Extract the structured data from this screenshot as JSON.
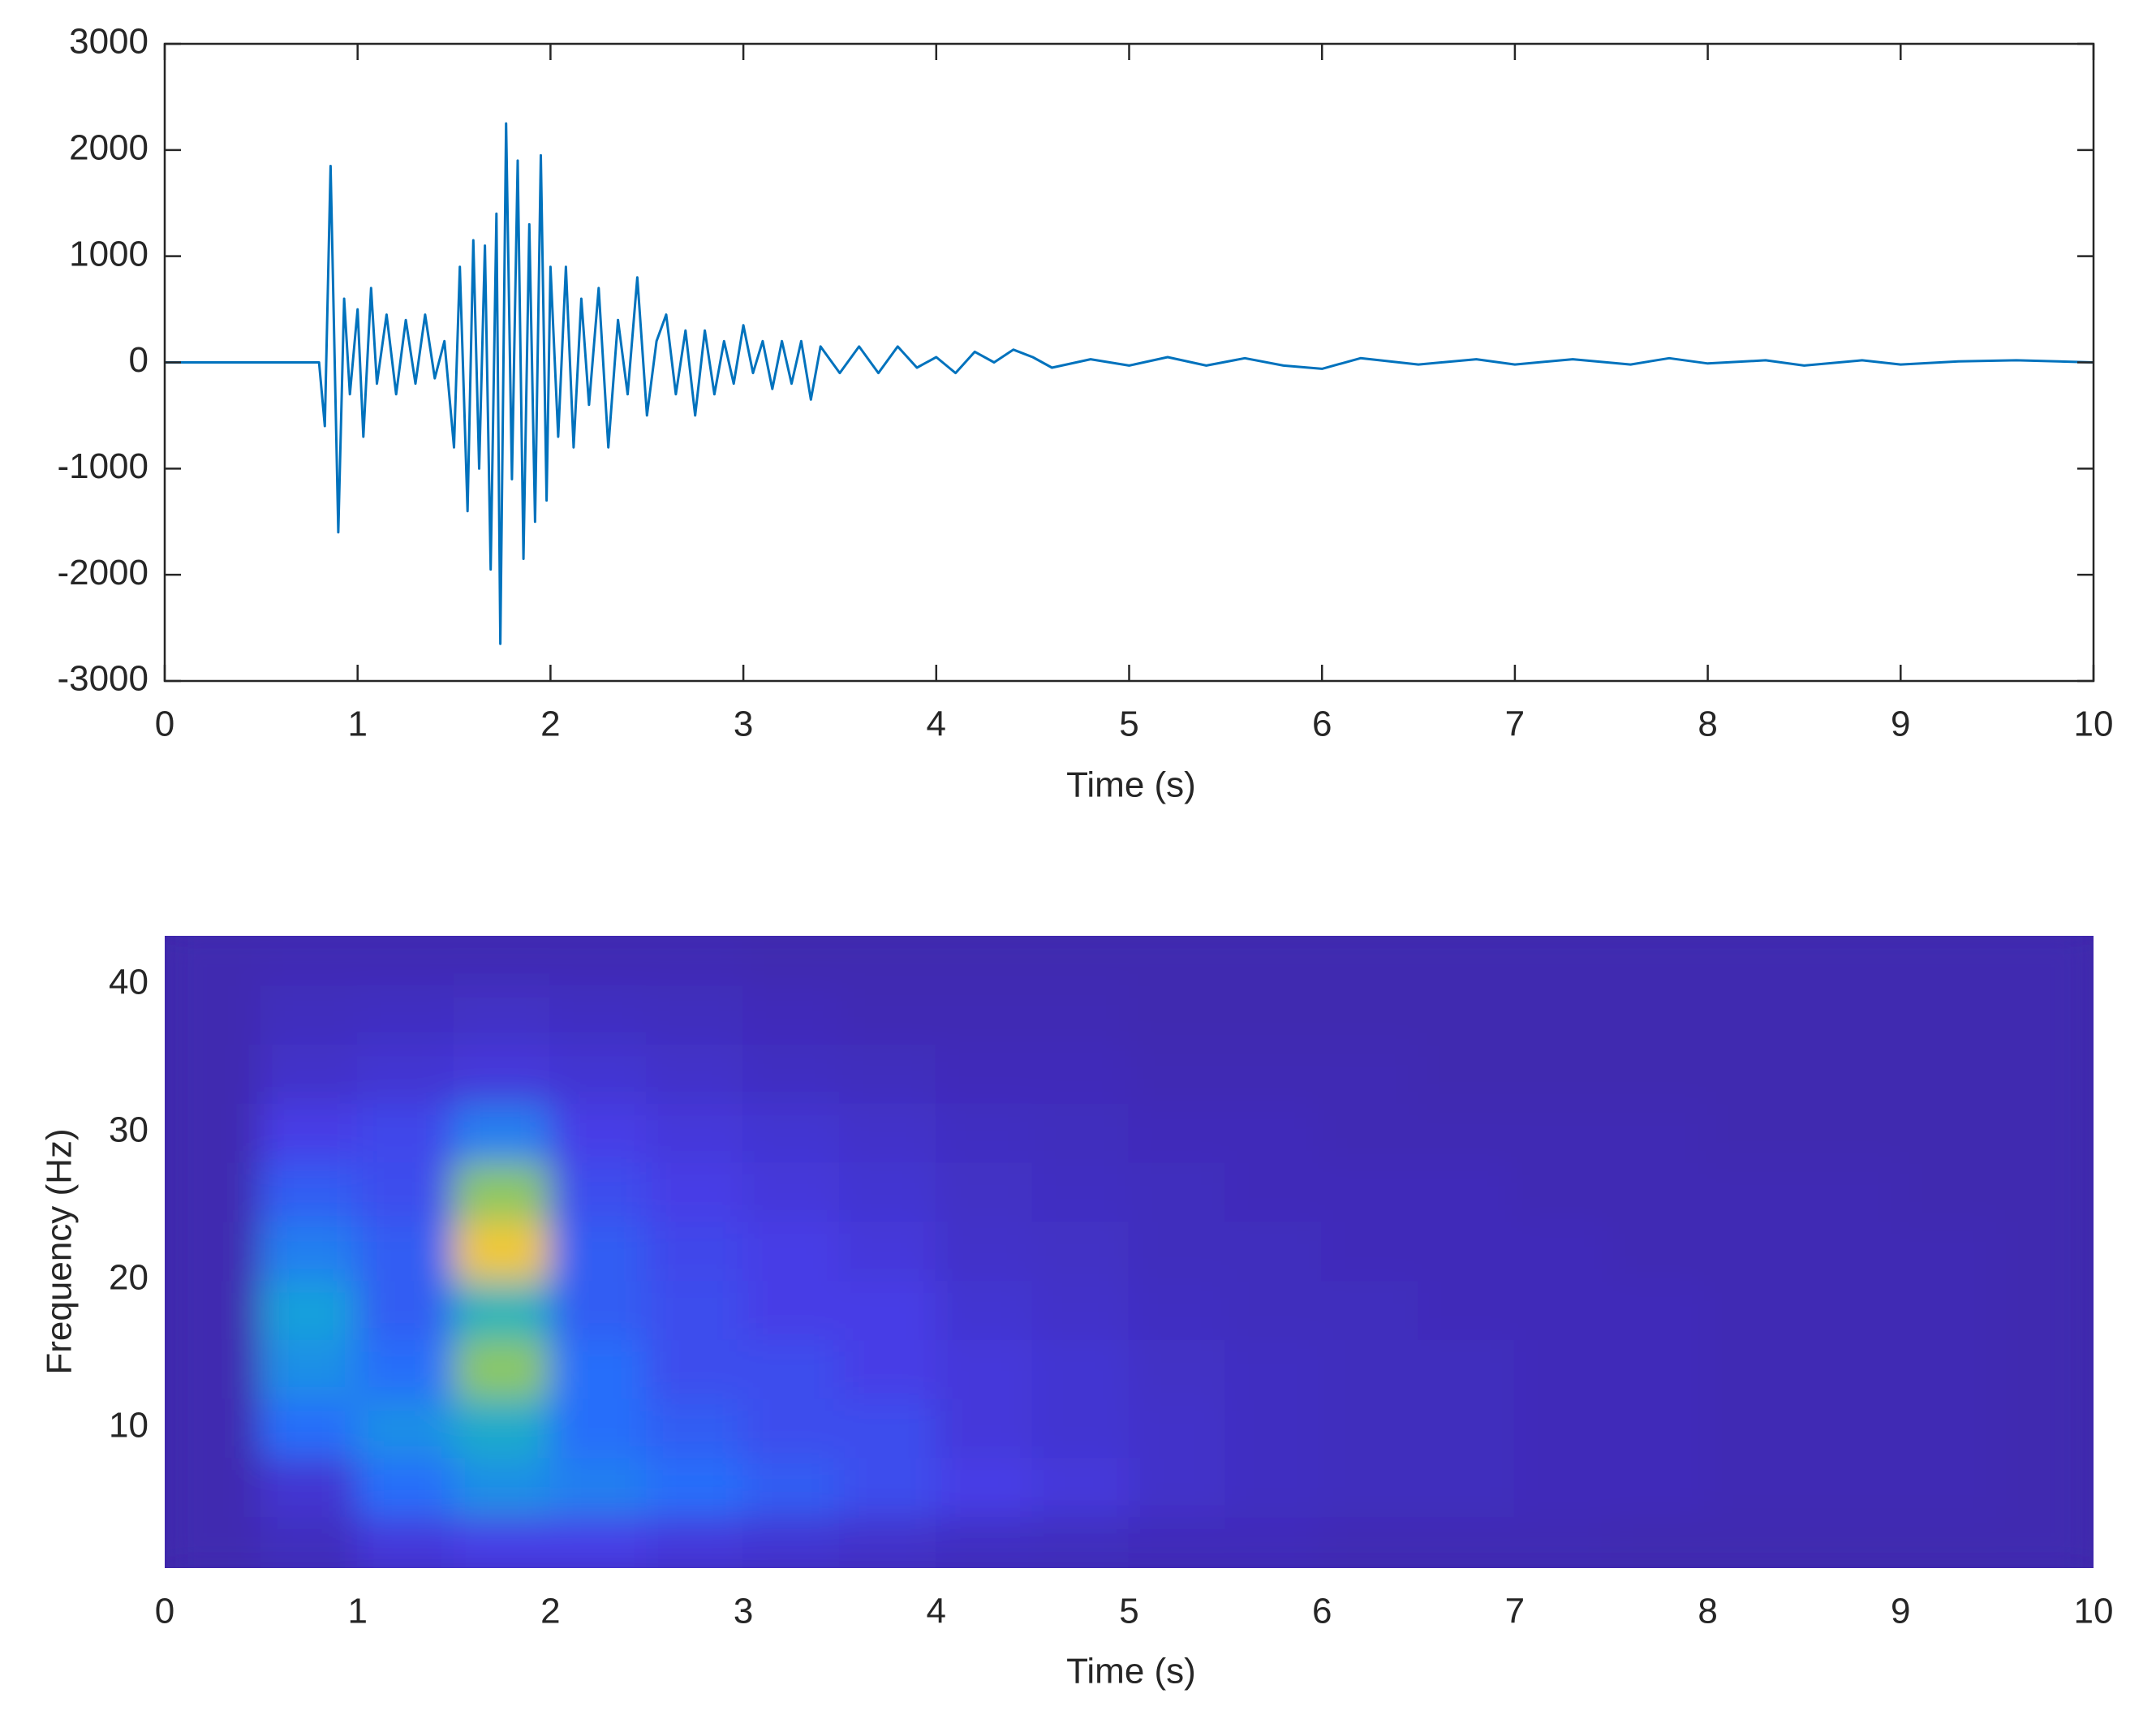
{
  "chart_data": [
    {
      "type": "line",
      "color": "#0072bd",
      "x": [
        0,
        0.8,
        0.83,
        0.86,
        0.9,
        0.93,
        0.96,
        1.0,
        1.03,
        1.07,
        1.1,
        1.15,
        1.2,
        1.25,
        1.3,
        1.35,
        1.4,
        1.45,
        1.5,
        1.53,
        1.57,
        1.6,
        1.63,
        1.66,
        1.69,
        1.72,
        1.74,
        1.77,
        1.8,
        1.83,
        1.86,
        1.89,
        1.92,
        1.95,
        1.98,
        2.0,
        2.04,
        2.08,
        2.12,
        2.16,
        2.2,
        2.25,
        2.3,
        2.35,
        2.4,
        2.45,
        2.5,
        2.55,
        2.6,
        2.65,
        2.7,
        2.75,
        2.8,
        2.85,
        2.9,
        2.95,
        3.0,
        3.05,
        3.1,
        3.15,
        3.2,
        3.25,
        3.3,
        3.35,
        3.4,
        3.5,
        3.6,
        3.7,
        3.8,
        3.9,
        4.0,
        4.1,
        4.2,
        4.3,
        4.4,
        4.5,
        4.6,
        4.8,
        5.0,
        5.2,
        5.4,
        5.6,
        5.8,
        6.0,
        6.2,
        6.5,
        6.8,
        7.0,
        7.3,
        7.6,
        7.8,
        8.0,
        8.3,
        8.5,
        8.8,
        9.0,
        9.3,
        9.6,
        10
      ],
      "values": [
        0,
        0,
        -600,
        1850,
        -1600,
        600,
        -300,
        500,
        -700,
        700,
        -200,
        450,
        -300,
        400,
        -200,
        450,
        -150,
        200,
        -800,
        900,
        -1400,
        1150,
        -1000,
        1100,
        -1950,
        1400,
        -2650,
        2250,
        -1100,
        1900,
        -1850,
        1300,
        -1500,
        1950,
        -1300,
        900,
        -700,
        900,
        -800,
        600,
        -400,
        700,
        -800,
        400,
        -300,
        800,
        -500,
        200,
        450,
        -300,
        300,
        -500,
        300,
        -300,
        200,
        -200,
        350,
        -100,
        200,
        -250,
        200,
        -200,
        200,
        -350,
        150,
        -100,
        150,
        -100,
        150,
        -50,
        50,
        -100,
        100,
        0,
        120,
        50,
        -50,
        30,
        -30,
        50,
        -30,
        40,
        -30,
        -60,
        40,
        -20,
        30,
        -20,
        30,
        -20,
        40,
        -10,
        20,
        -30,
        20,
        -20,
        10,
        20,
        0
      ],
      "xlim": [
        0,
        10
      ],
      "xticks": [
        0,
        1,
        2,
        3,
        4,
        5,
        6,
        7,
        8,
        9,
        10
      ],
      "ylim": [
        -3000,
        3000
      ],
      "yticks": [
        -3000,
        -2000,
        -1000,
        0,
        1000,
        2000,
        3000
      ],
      "xlabel": "Time (s)"
    },
    {
      "type": "heatmap",
      "x": [
        0.25,
        0.75,
        1.25,
        1.75,
        2.25,
        2.75,
        3.25,
        3.75,
        4.25,
        4.75,
        5.25,
        5.75,
        6.25,
        6.75,
        7.25,
        7.75,
        8.25,
        8.75,
        9.25,
        9.75
      ],
      "y": [
        2,
        6,
        10,
        14,
        18,
        22,
        26,
        30,
        34,
        38,
        42
      ],
      "z": [
        [
          0.02,
          0.05,
          0.12,
          0.15,
          0.15,
          0.12,
          0.1,
          0.08,
          0.06,
          0.05,
          0.04,
          0.04,
          0.03,
          0.03,
          0.03,
          0.02,
          0.02,
          0.02,
          0.02,
          0.02
        ],
        [
          0.02,
          0.1,
          0.3,
          0.4,
          0.35,
          0.3,
          0.25,
          0.2,
          0.15,
          0.12,
          0.08,
          0.06,
          0.05,
          0.05,
          0.04,
          0.04,
          0.03,
          0.03,
          0.03,
          0.02
        ],
        [
          0.02,
          0.3,
          0.4,
          0.5,
          0.3,
          0.25,
          0.2,
          0.2,
          0.12,
          0.1,
          0.08,
          0.06,
          0.05,
          0.05,
          0.04,
          0.04,
          0.03,
          0.03,
          0.03,
          0.02
        ],
        [
          0.02,
          0.4,
          0.3,
          0.75,
          0.3,
          0.2,
          0.2,
          0.15,
          0.12,
          0.1,
          0.07,
          0.06,
          0.05,
          0.05,
          0.04,
          0.04,
          0.03,
          0.03,
          0.03,
          0.02
        ],
        [
          0.02,
          0.45,
          0.25,
          0.55,
          0.25,
          0.2,
          0.15,
          0.15,
          0.1,
          0.08,
          0.06,
          0.05,
          0.05,
          0.04,
          0.04,
          0.04,
          0.03,
          0.03,
          0.03,
          0.02
        ],
        [
          0.02,
          0.35,
          0.25,
          0.9,
          0.25,
          0.18,
          0.15,
          0.12,
          0.08,
          0.07,
          0.05,
          0.05,
          0.04,
          0.04,
          0.04,
          0.03,
          0.03,
          0.03,
          0.03,
          0.02
        ],
        [
          0.02,
          0.25,
          0.2,
          0.75,
          0.2,
          0.15,
          0.12,
          0.1,
          0.07,
          0.06,
          0.05,
          0.04,
          0.04,
          0.04,
          0.03,
          0.03,
          0.03,
          0.03,
          0.02,
          0.02
        ],
        [
          0.02,
          0.15,
          0.18,
          0.35,
          0.15,
          0.12,
          0.1,
          0.08,
          0.06,
          0.05,
          0.04,
          0.04,
          0.03,
          0.03,
          0.03,
          0.03,
          0.02,
          0.02,
          0.02,
          0.02
        ],
        [
          0.02,
          0.08,
          0.1,
          0.12,
          0.1,
          0.08,
          0.06,
          0.05,
          0.04,
          0.04,
          0.03,
          0.03,
          0.03,
          0.02,
          0.02,
          0.02,
          0.02,
          0.02,
          0.02,
          0.02
        ],
        [
          0.02,
          0.05,
          0.06,
          0.07,
          0.06,
          0.05,
          0.04,
          0.03,
          0.03,
          0.03,
          0.02,
          0.02,
          0.02,
          0.02,
          0.02,
          0.02,
          0.02,
          0.02,
          0.02,
          0.02
        ],
        [
          0.02,
          0.03,
          0.03,
          0.03,
          0.03,
          0.03,
          0.02,
          0.02,
          0.02,
          0.02,
          0.02,
          0.02,
          0.02,
          0.02,
          0.02,
          0.02,
          0.02,
          0.02,
          0.02,
          0.02
        ]
      ],
      "xlim": [
        0,
        10
      ],
      "xticks": [
        0,
        1,
        2,
        3,
        4,
        5,
        6,
        7,
        8,
        9,
        10
      ],
      "ylim": [
        0.5,
        43.3
      ],
      "yticks": [
        10,
        20,
        30,
        40
      ],
      "xlabel": "Time (s)",
      "ylabel": "Frequency (Hz)"
    }
  ]
}
